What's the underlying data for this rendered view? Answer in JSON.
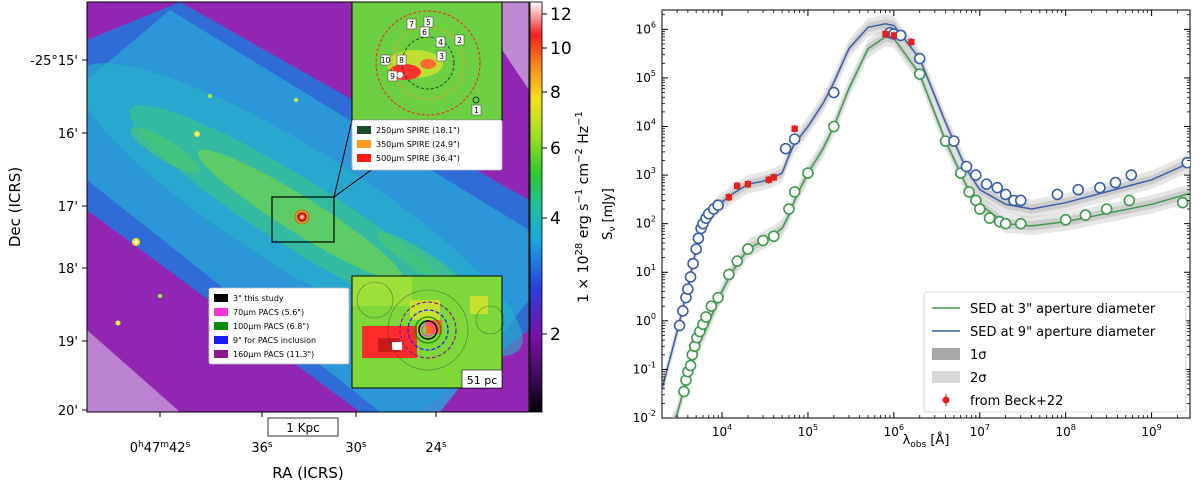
{
  "chart_data": [
    {
      "type": "image",
      "title": "",
      "xlabel": "RA (ICRS)",
      "ylabel": "Dec (ICRS)",
      "x_ticks": [
        {
          "label": "0h47m42s",
          "main": "0",
          "sup1": "h",
          "mid": "47",
          "sup2": "m",
          "end": "42",
          "sup3": "s"
        },
        {
          "label": "36s",
          "main": "36",
          "sup": "s"
        },
        {
          "label": "30s",
          "main": "30",
          "sup": "s"
        },
        {
          "label": "24s",
          "main": "24",
          "sup": "s"
        }
      ],
      "y_ticks": [
        "-25°15'",
        "16'",
        "17'",
        "18'",
        "19'",
        "20'"
      ],
      "colorbar": {
        "ticks": [
          "12",
          "10",
          "8",
          "6",
          "4",
          "2"
        ],
        "tick_values": [
          12,
          10,
          8,
          6,
          4,
          2
        ],
        "label": "1 × 10²⁸ erg s⁻¹ cm⁻² Hz⁻¹",
        "label_parts": {
          "pre": "1 × 10",
          "exp1": "28",
          "mid": " erg s",
          "exp2": "−1",
          "mid2": " cm",
          "exp3": "−2",
          "end": " Hz",
          "exp4": "−1"
        }
      },
      "scalebar": "1 Kpc",
      "inset_top": {
        "region_numbers": [
          "1",
          "2",
          "3",
          "4",
          "5",
          "6",
          "7",
          "8",
          "9",
          "10"
        ],
        "legend": [
          {
            "label": "250µm SPIRE (18.1\")",
            "color": "#1b4d2a"
          },
          {
            "label": "350µm SPIRE (24.9\")",
            "color": "#ff9922"
          },
          {
            "label": "500µm SPIRE (36.4\")",
            "color": "#ff1a1a"
          }
        ]
      },
      "inset_bottom": {
        "scale_label": "51 pc",
        "legend": [
          {
            "label": "3\" this study",
            "color": "#000000"
          },
          {
            "label": "70µm PACS (5.6\")",
            "color": "#ff33dd"
          },
          {
            "label": "100µm PACS (6.8\")",
            "color": "#118a11"
          },
          {
            "label": "9\" for PACS inclusion",
            "color": "#1a1aff"
          },
          {
            "label": "160µm PACS (11.3\")",
            "color": "#8a1a8a"
          }
        ]
      }
    },
    {
      "type": "line",
      "xlabel": "λobs [Å]",
      "ylabel": "Sν [mJy]",
      "xscale": "log",
      "yscale": "log",
      "xlim": [
        2000,
        2800000000
      ],
      "ylim": [
        0.01,
        2500000
      ],
      "x_ticks": [
        "10^4",
        "10^5",
        "10^6",
        "10^7",
        "10^8",
        "10^9"
      ],
      "y_ticks": [
        "10^-2",
        "10^-1",
        "10^0",
        "10^1",
        "10^2",
        "10^3",
        "10^4",
        "10^5",
        "10^6"
      ],
      "colors": {
        "blue": "#3a5fa8",
        "green": "#3f9a4e",
        "red": "#e32020",
        "band": "#b8b8b8"
      },
      "series": [
        {
          "name": "SED at 3\" aperture diameter",
          "color": "#3f9a4e",
          "model": [
            [
              2000,
              0.003
            ],
            [
              3000,
              0.012
            ],
            [
              4000,
              0.08
            ],
            [
              5000,
              0.25
            ],
            [
              6000,
              0.5
            ],
            [
              7000,
              0.9
            ],
            [
              8000,
              1.6
            ],
            [
              10000,
              4
            ],
            [
              13000,
              10
            ],
            [
              20000,
              30
            ],
            [
              30000,
              45
            ],
            [
              40000,
              60
            ],
            [
              50000,
              80
            ],
            [
              60000,
              150
            ],
            [
              70000,
              300
            ],
            [
              80000,
              500
            ],
            [
              100000,
              1100
            ],
            [
              150000,
              3500
            ],
            [
              200000,
              10000
            ],
            [
              300000,
              60000
            ],
            [
              500000,
              400000
            ],
            [
              800000,
              700000
            ],
            [
              1000000,
              650000
            ],
            [
              2000000,
              120000
            ],
            [
              4000000,
              5000
            ],
            [
              7000000,
              600
            ],
            [
              10000000,
              250
            ],
            [
              20000000,
              100
            ],
            [
              40000000,
              90
            ],
            [
              100000000,
              110
            ],
            [
              1000000000,
              250
            ],
            [
              2800000000,
              420
            ]
          ],
          "points": [
            [
              3600,
              0.035
            ],
            [
              3800,
              0.06
            ],
            [
              4000,
              0.09
            ],
            [
              4300,
              0.12
            ],
            [
              4500,
              0.2
            ],
            [
              4800,
              0.3
            ],
            [
              5100,
              0.45
            ],
            [
              5500,
              0.6
            ],
            [
              6000,
              0.85
            ],
            [
              6500,
              1.2
            ],
            [
              7500,
              2
            ],
            [
              9000,
              3
            ],
            [
              12000,
              9
            ],
            [
              15000,
              17
            ],
            [
              20000,
              30
            ],
            [
              30000,
              45
            ],
            [
              40000,
              55
            ],
            [
              60000,
              200
            ],
            [
              70000,
              450
            ],
            [
              100000,
              1100
            ],
            [
              200000,
              10000
            ],
            [
              2000000,
              120000
            ],
            [
              4000000,
              5000
            ],
            [
              6000000,
              1100
            ],
            [
              7500000,
              450
            ],
            [
              9000000,
              300
            ],
            [
              10000000,
              200
            ],
            [
              13000000,
              130
            ],
            [
              17000000,
              110
            ],
            [
              20000000,
              100
            ],
            [
              30000000,
              100
            ],
            [
              100000000,
              120
            ],
            [
              170000000,
              150
            ],
            [
              300000000,
              200
            ],
            [
              550000000,
              300
            ],
            [
              2300000000,
              270
            ]
          ]
        },
        {
          "name": "SED at 9\" aperture diameter",
          "color": "#3a5fa8",
          "model": [
            [
              2000,
              0.04
            ],
            [
              3000,
              0.6
            ],
            [
              4000,
              5
            ],
            [
              5000,
              30
            ],
            [
              6000,
              90
            ],
            [
              7000,
              150
            ],
            [
              8000,
              200
            ],
            [
              10000,
              280
            ],
            [
              13000,
              400
            ],
            [
              20000,
              650
            ],
            [
              30000,
              750
            ],
            [
              40000,
              900
            ],
            [
              50000,
              1100
            ],
            [
              60000,
              2500
            ],
            [
              70000,
              4500
            ],
            [
              80000,
              6000
            ],
            [
              100000,
              10000
            ],
            [
              150000,
              30000
            ],
            [
              200000,
              80000
            ],
            [
              300000,
              400000
            ],
            [
              500000,
              1100000
            ],
            [
              800000,
              1300000
            ],
            [
              1000000,
              1200000
            ],
            [
              2000000,
              250000
            ],
            [
              4000000,
              12000
            ],
            [
              7000000,
              1300
            ],
            [
              10000000,
              500
            ],
            [
              20000000,
              250
            ],
            [
              40000000,
              200
            ],
            [
              100000000,
              270
            ],
            [
              1000000000,
              800
            ],
            [
              2800000000,
              1800
            ]
          ],
          "points": [
            [
              3200,
              0.8
            ],
            [
              3500,
              1.6
            ],
            [
              3800,
              3
            ],
            [
              4000,
              4.5
            ],
            [
              4300,
              8
            ],
            [
              4600,
              15
            ],
            [
              5000,
              30
            ],
            [
              5300,
              50
            ],
            [
              5700,
              80
            ],
            [
              6000,
              100
            ],
            [
              6500,
              130
            ],
            [
              7000,
              160
            ],
            [
              8000,
              200
            ],
            [
              9000,
              240
            ],
            [
              55000,
              3500
            ],
            [
              70000,
              5500
            ],
            [
              200000,
              50000
            ],
            [
              900000,
              850000
            ],
            [
              1000000,
              800000
            ],
            [
              1200000,
              750000
            ],
            [
              2000000,
              250000
            ],
            [
              5000000,
              5000
            ],
            [
              7000000,
              1500
            ],
            [
              9000000,
              1000
            ],
            [
              12000000,
              650
            ],
            [
              16000000,
              550
            ],
            [
              20000000,
              400
            ],
            [
              25000000,
              300
            ],
            [
              30000000,
              300
            ],
            [
              80000000,
              400
            ],
            [
              140000000,
              500
            ],
            [
              250000000,
              550
            ],
            [
              380000000,
              700
            ],
            [
              580000000,
              1000
            ],
            [
              2600000000,
              1800
            ]
          ]
        },
        {
          "name": "from Beck+22",
          "color": "#e32020",
          "points": [
            [
              12000,
              350
            ],
            [
              15000,
              600
            ],
            [
              20000,
              650
            ],
            [
              35000,
              800
            ],
            [
              40000,
              900
            ],
            [
              70000,
              9000
            ],
            [
              800000,
              800000
            ],
            [
              1000000,
              750000
            ],
            [
              1600000,
              550000
            ]
          ]
        }
      ],
      "legend": [
        {
          "label": "SED at 3\" aperture diameter",
          "kind": "line",
          "color": "#3f9a4e"
        },
        {
          "label": "SED at 9\" aperture diameter",
          "kind": "line",
          "color": "#3a5fa8"
        },
        {
          "label": "1σ",
          "kind": "patch",
          "color": "#a8a8a8"
        },
        {
          "label": "2σ",
          "kind": "patch",
          "color": "#d8d8d8"
        },
        {
          "label": "from Beck+22",
          "kind": "errpoint",
          "color": "#e32020"
        }
      ]
    }
  ]
}
